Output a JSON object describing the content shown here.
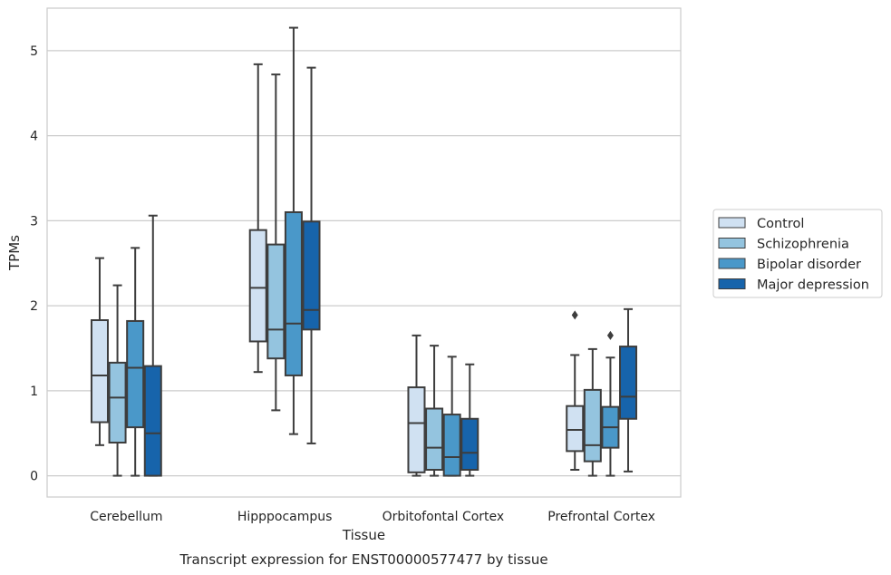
{
  "chart_data": {
    "type": "box",
    "title": "Transcript expression for ENST00000577477 by tissue",
    "xlabel": "Tissue",
    "ylabel": "TPMs",
    "ylim": [
      -0.25,
      5.5
    ],
    "yticks": [
      0,
      1,
      2,
      3,
      4,
      5
    ],
    "grid": "horizontal",
    "legend": "right",
    "categories": [
      "Cerebellum",
      "Hipppocampus",
      "Orbitofontal Cortex",
      "Prefrontal Cortex"
    ],
    "series": [
      {
        "name": "Control",
        "color": "#d0e1f2",
        "boxes": [
          {
            "whislo": 0.36,
            "q1": 0.63,
            "med": 1.18,
            "q3": 1.83,
            "whishi": 2.56,
            "fliers": []
          },
          {
            "whislo": 1.22,
            "q1": 1.58,
            "med": 2.21,
            "q3": 2.89,
            "whishi": 4.84,
            "fliers": []
          },
          {
            "whislo": 0.0,
            "q1": 0.04,
            "med": 0.62,
            "q3": 1.04,
            "whishi": 1.65,
            "fliers": []
          },
          {
            "whislo": 0.07,
            "q1": 0.29,
            "med": 0.54,
            "q3": 0.82,
            "whishi": 1.42,
            "fliers": [
              1.89
            ]
          }
        ]
      },
      {
        "name": "Schizophrenia",
        "color": "#94c4df",
        "boxes": [
          {
            "whislo": 0.0,
            "q1": 0.39,
            "med": 0.92,
            "q3": 1.33,
            "whishi": 2.24,
            "fliers": []
          },
          {
            "whislo": 0.77,
            "q1": 1.38,
            "med": 1.72,
            "q3": 2.72,
            "whishi": 4.72,
            "fliers": []
          },
          {
            "whislo": 0.0,
            "q1": 0.07,
            "med": 0.33,
            "q3": 0.79,
            "whishi": 1.53,
            "fliers": []
          },
          {
            "whislo": 0.0,
            "q1": 0.17,
            "med": 0.36,
            "q3": 1.01,
            "whishi": 1.49,
            "fliers": []
          }
        ]
      },
      {
        "name": "Bipolar disorder",
        "color": "#4a98c9",
        "boxes": [
          {
            "whislo": 0.0,
            "q1": 0.57,
            "med": 1.27,
            "q3": 1.82,
            "whishi": 2.68,
            "fliers": []
          },
          {
            "whislo": 0.49,
            "q1": 1.18,
            "med": 1.79,
            "q3": 3.1,
            "whishi": 5.27,
            "fliers": []
          },
          {
            "whislo": 0.0,
            "q1": 0.0,
            "med": 0.22,
            "q3": 0.72,
            "whishi": 1.4,
            "fliers": []
          },
          {
            "whislo": 0.0,
            "q1": 0.33,
            "med": 0.57,
            "q3": 0.81,
            "whishi": 1.39,
            "fliers": [
              1.65
            ]
          }
        ]
      },
      {
        "name": "Major depression",
        "color": "#1764ab",
        "boxes": [
          {
            "whislo": 0.0,
            "q1": 0.0,
            "med": 0.5,
            "q3": 1.29,
            "whishi": 3.06,
            "fliers": []
          },
          {
            "whislo": 0.38,
            "q1": 1.72,
            "med": 1.95,
            "q3": 2.99,
            "whishi": 4.8,
            "fliers": []
          },
          {
            "whislo": 0.0,
            "q1": 0.07,
            "med": 0.27,
            "q3": 0.67,
            "whishi": 1.31,
            "fliers": []
          },
          {
            "whislo": 0.05,
            "q1": 0.67,
            "med": 0.93,
            "q3": 1.52,
            "whishi": 1.96,
            "fliers": []
          }
        ]
      }
    ]
  }
}
